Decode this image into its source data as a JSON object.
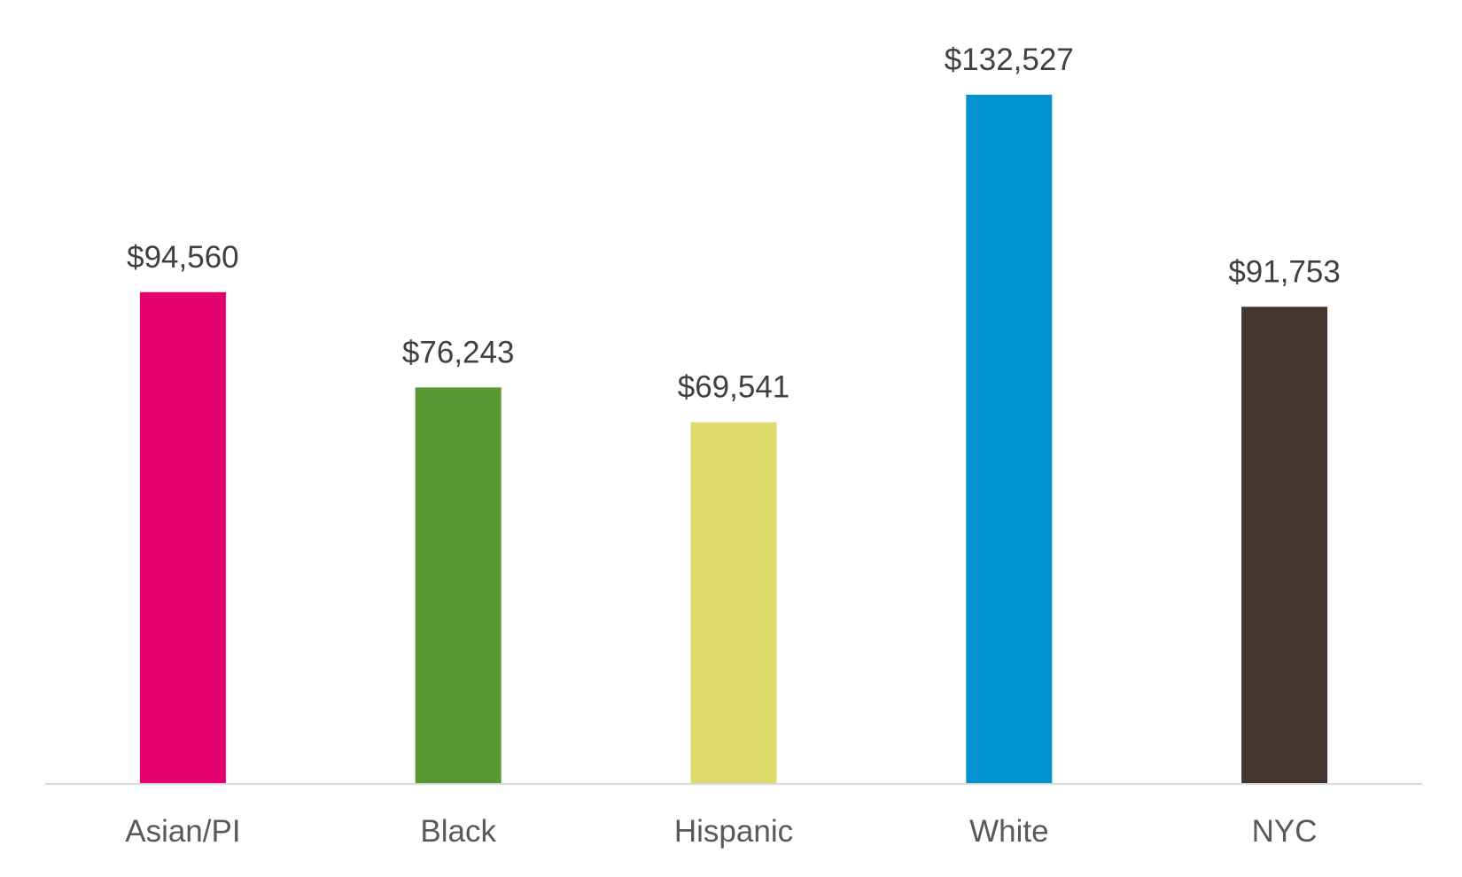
{
  "chart_data": {
    "type": "bar",
    "title": "",
    "xlabel": "",
    "ylabel": "",
    "categories": [
      "Asian/PI",
      "Black",
      "Hispanic",
      "White",
      "NYC"
    ],
    "values": [
      94560,
      76243,
      69541,
      132527,
      91753
    ],
    "data_labels": [
      "$94,560",
      "$76,243",
      "$69,541",
      "$132,527",
      "$91,753"
    ],
    "colors": [
      "#E5006F",
      "#589734",
      "#DCDA6B",
      "#0093D0",
      "#44362E"
    ],
    "ylim": [
      0,
      140000
    ],
    "grid": false,
    "legend": "none"
  }
}
